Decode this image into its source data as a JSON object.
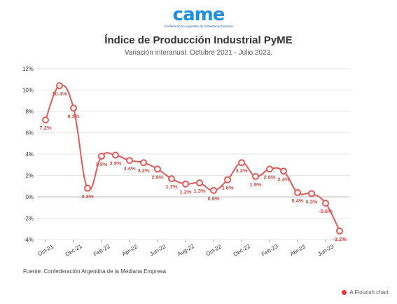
{
  "logo": {
    "mark": "came",
    "subtitle": "Confederación Argentina de la Mediana Empresa"
  },
  "header": {
    "title": "Índice de Producción Industrial PyME",
    "subtitle": "Variación interanual. Octubre 2021 - Julio 2023."
  },
  "footer": {
    "source": "Fuente: Confederación Argentina de la Mediana Empresa",
    "credit": "A Flourish chart"
  },
  "colors": {
    "line": "#e05a5a",
    "label": "#d44a4a",
    "grid": "#e6e6e6"
  },
  "chart_data": {
    "type": "line",
    "title": "Índice de Producción Industrial PyME",
    "subtitle": "Variación interanual. Octubre 2021 - Julio 2023.",
    "xlabel": "",
    "ylabel": "",
    "ylim": [
      -4,
      12
    ],
    "yticks": [
      -4,
      -2,
      0,
      2,
      4,
      6,
      8,
      10,
      12
    ],
    "ytick_labels": [
      "-4%",
      "-2%",
      "0%",
      "2%",
      "4%",
      "6%",
      "8%",
      "10%",
      "12%"
    ],
    "grid": true,
    "legend": "none",
    "x": [
      "Oct-21",
      "Nov-21",
      "Dec-21",
      "Jan-22",
      "Feb-22",
      "Mar-22",
      "Apr-22",
      "May-22",
      "Jun-22",
      "Jul-22",
      "Aug-22",
      "Sep-22",
      "Oct-22",
      "Nov-22",
      "Dec-22",
      "Jan-23",
      "Feb-23",
      "Mar-23",
      "Apr-23",
      "May-23",
      "Jun-23",
      "Jul-23"
    ],
    "xtick_labels": [
      "Oct-21",
      "Dec-21",
      "Feb-22",
      "Apr-22",
      "Jun-22",
      "Aug-22",
      "Oct-22",
      "Dec-22",
      "Feb-23",
      "Abr-23",
      "Jun-23"
    ],
    "xtick_index": [
      0,
      2,
      4,
      6,
      8,
      10,
      12,
      14,
      16,
      18,
      20
    ],
    "series": [
      {
        "values": [
          7.2,
          10.4,
          8.3,
          0.8,
          3.8,
          3.9,
          3.4,
          3.2,
          2.6,
          1.7,
          1.2,
          1.3,
          0.6,
          1.6,
          3.2,
          1.9,
          2.6,
          2.4,
          0.4,
          0.3,
          -0.6,
          -3.2
        ],
        "labels": [
          "7.2%",
          "10.4%",
          "8.3%",
          "0.8%",
          "3.8%",
          "3.9%",
          "3.4%",
          "3.2%",
          "2.6%",
          "1.7%",
          "1.2%",
          "1.3%",
          "0.6%",
          "1.6%",
          "3.2%",
          "1.9%",
          "2.6%",
          "2.4%",
          "0.4%",
          "0.3%",
          "-0.6%",
          "-3.2%"
        ]
      }
    ]
  }
}
